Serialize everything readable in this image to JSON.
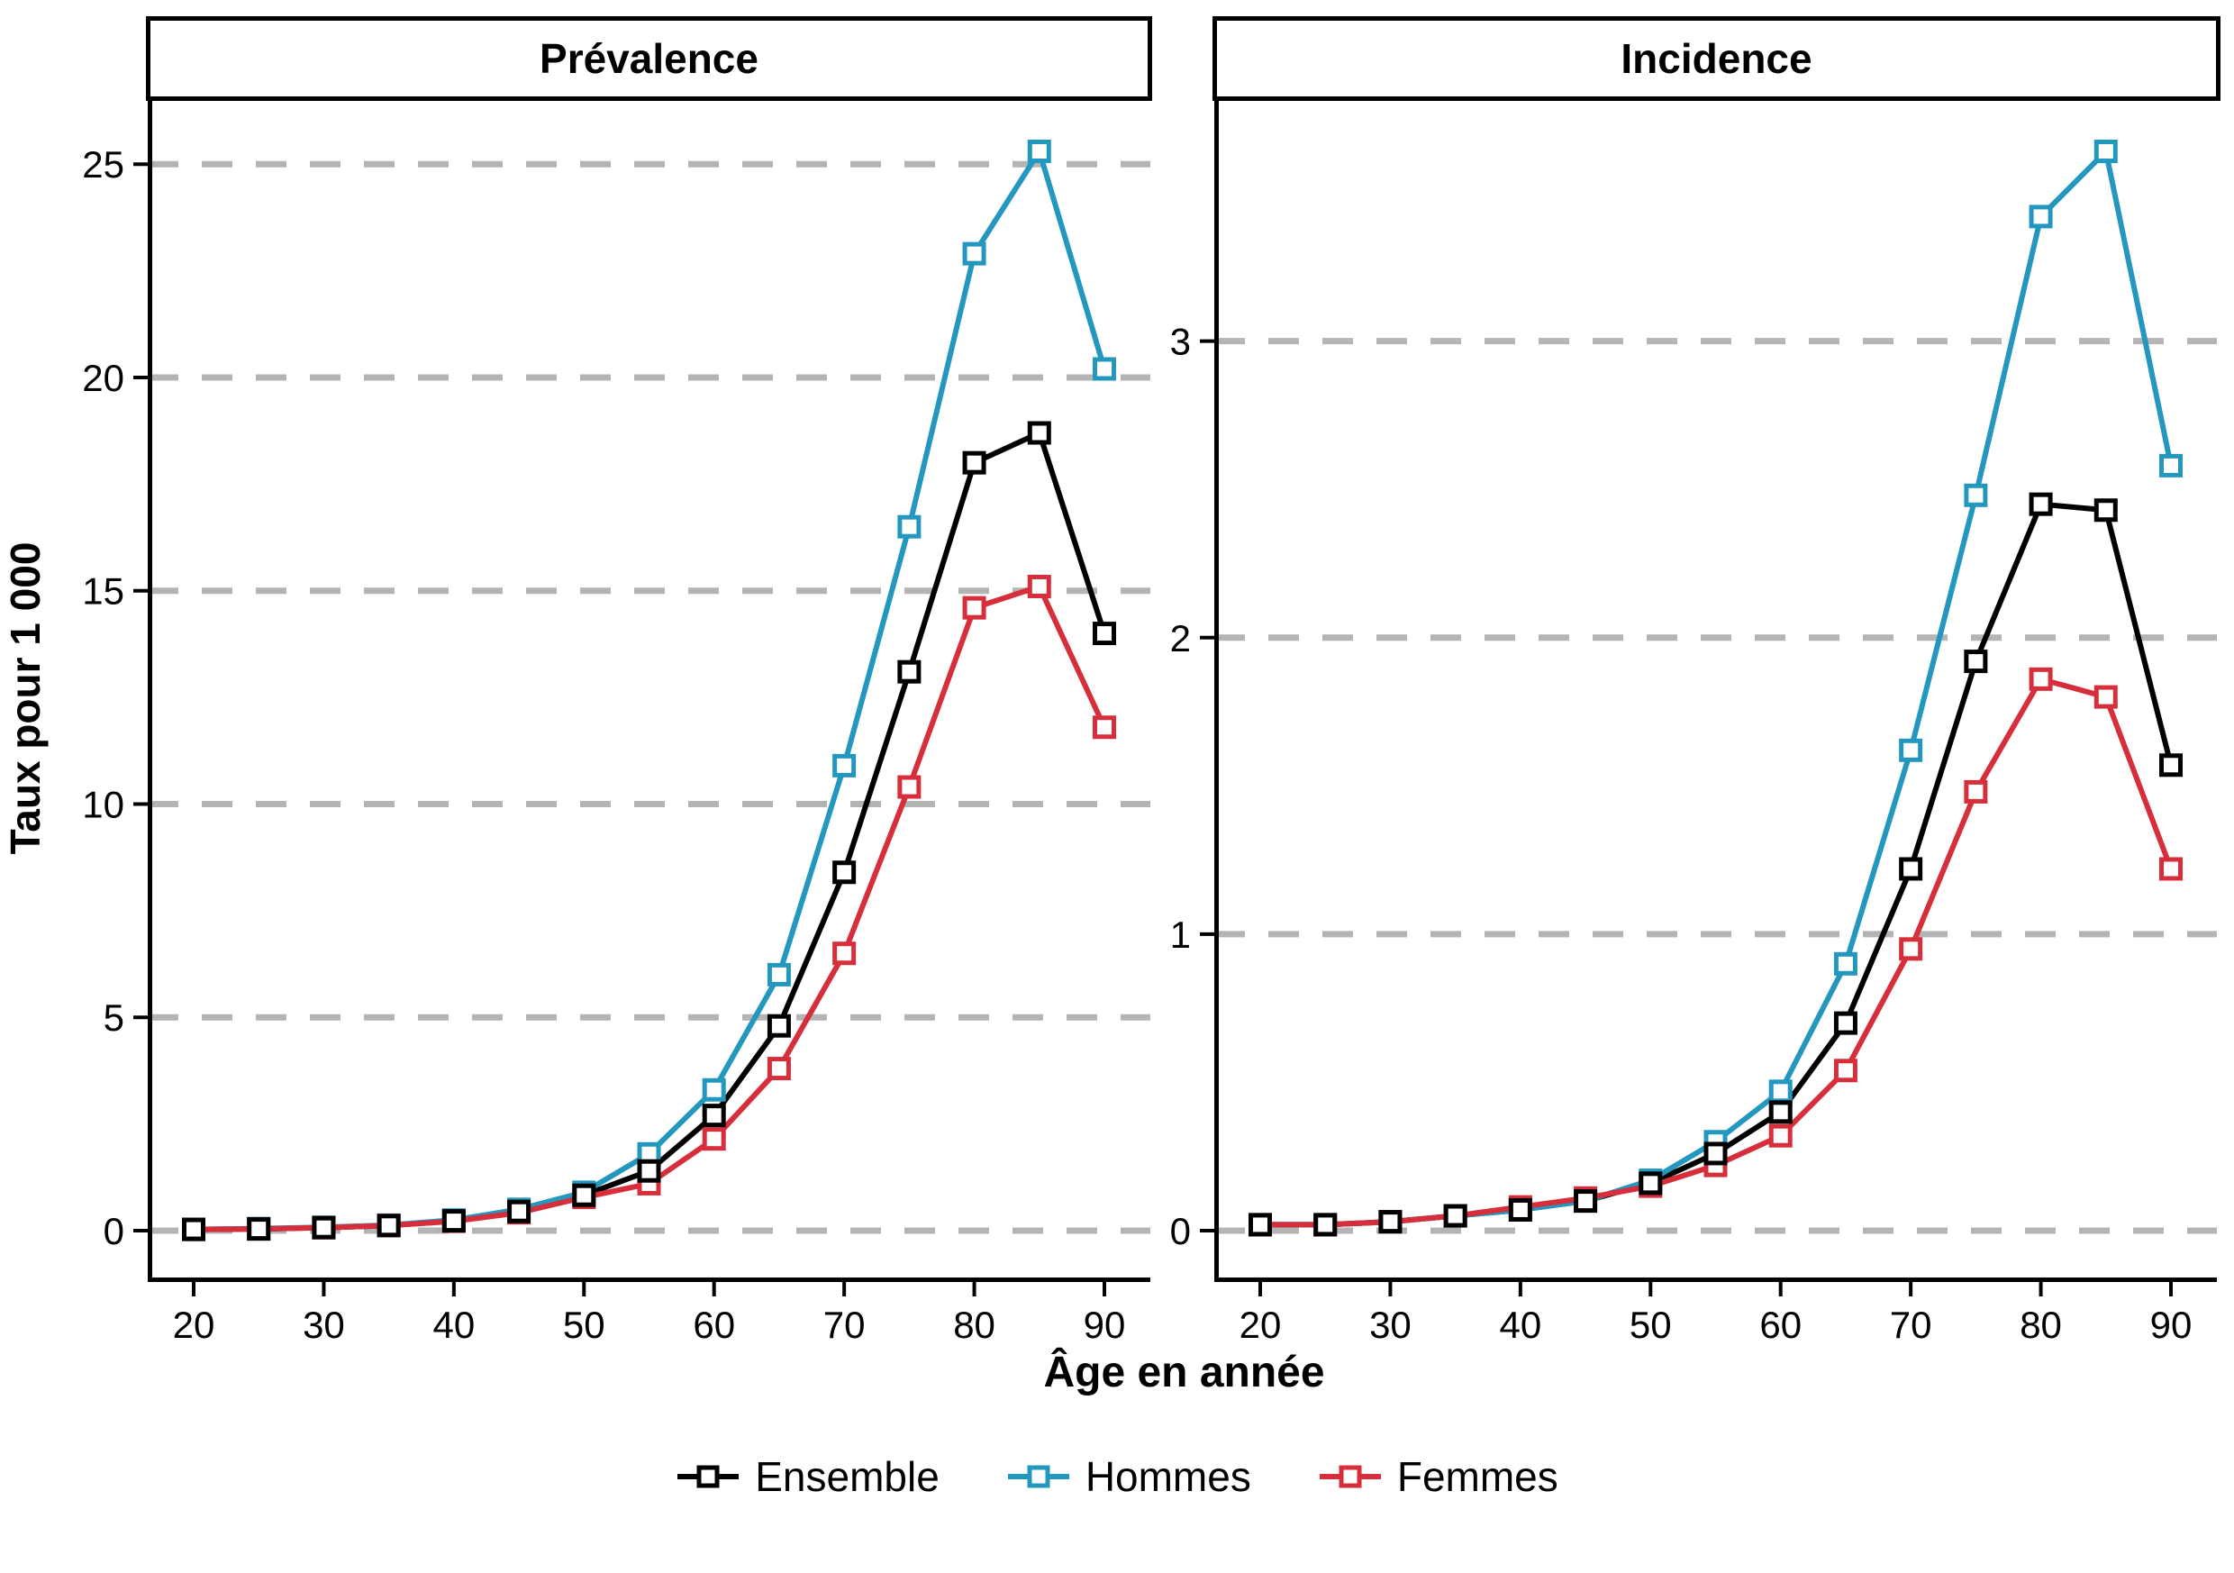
{
  "figure": {
    "background": "#ffffff"
  },
  "axes": {
    "xlabel": "Âge en année",
    "ylabel": "Taux pour 1 000",
    "x_ticks": [
      20,
      30,
      40,
      50,
      60,
      70,
      80,
      90
    ],
    "grid_style": "dashed-horizontal",
    "grid_color": "#b4b4b4",
    "axis_color": "#000000"
  },
  "legend": {
    "position": "bottom-center",
    "items": [
      {
        "label": "Ensemble",
        "color": "#000000"
      },
      {
        "label": "Hommes",
        "color": "#2397BE"
      },
      {
        "label": "Femmes",
        "color": "#D62E3A"
      }
    ]
  },
  "chart_data": [
    {
      "type": "line",
      "facet": "Prévalence",
      "xlabel": "Âge en année",
      "ylabel": "Taux pour 1 000",
      "x": [
        20,
        25,
        30,
        35,
        40,
        45,
        50,
        55,
        60,
        65,
        70,
        75,
        80,
        85,
        90
      ],
      "yticks": [
        0,
        5,
        10,
        15,
        20,
        25
      ],
      "ylim": [
        0,
        26.5
      ],
      "marker": "open-square",
      "series": [
        {
          "name": "Ensemble",
          "color": "#000000",
          "values": [
            0.03,
            0.04,
            0.07,
            0.12,
            0.23,
            0.45,
            0.83,
            1.4,
            2.7,
            4.8,
            8.4,
            13.1,
            18.0,
            18.7,
            14.0
          ]
        },
        {
          "name": "Hommes",
          "color": "#2397BE",
          "values": [
            0.03,
            0.05,
            0.08,
            0.13,
            0.25,
            0.5,
            0.9,
            1.8,
            3.3,
            6.0,
            10.9,
            16.5,
            22.9,
            25.3,
            20.2
          ]
        },
        {
          "name": "Femmes",
          "color": "#D62E3A",
          "values": [
            0.03,
            0.04,
            0.07,
            0.12,
            0.22,
            0.42,
            0.78,
            1.1,
            2.15,
            3.8,
            6.5,
            10.4,
            14.6,
            15.1,
            11.8
          ]
        }
      ]
    },
    {
      "type": "line",
      "facet": "Incidence",
      "xlabel": "Âge en année",
      "ylabel": "Taux pour 1 000",
      "x": [
        20,
        25,
        30,
        35,
        40,
        45,
        50,
        55,
        60,
        65,
        70,
        75,
        80,
        85,
        90
      ],
      "yticks": [
        0,
        1,
        2,
        3
      ],
      "ylim": [
        0,
        3.8
      ],
      "marker": "open-square",
      "series": [
        {
          "name": "Ensemble",
          "color": "#000000",
          "values": [
            0.02,
            0.02,
            0.03,
            0.05,
            0.07,
            0.1,
            0.16,
            0.26,
            0.4,
            0.7,
            1.22,
            1.92,
            2.45,
            2.43,
            1.57
          ]
        },
        {
          "name": "Hommes",
          "color": "#2397BE",
          "values": [
            0.02,
            0.02,
            0.03,
            0.05,
            0.07,
            0.1,
            0.17,
            0.3,
            0.47,
            0.9,
            1.62,
            2.48,
            3.42,
            3.64,
            2.58
          ]
        },
        {
          "name": "Femmes",
          "color": "#D62E3A",
          "values": [
            0.02,
            0.02,
            0.03,
            0.05,
            0.08,
            0.11,
            0.15,
            0.22,
            0.32,
            0.54,
            0.95,
            1.48,
            1.86,
            1.8,
            1.22
          ]
        }
      ]
    }
  ]
}
